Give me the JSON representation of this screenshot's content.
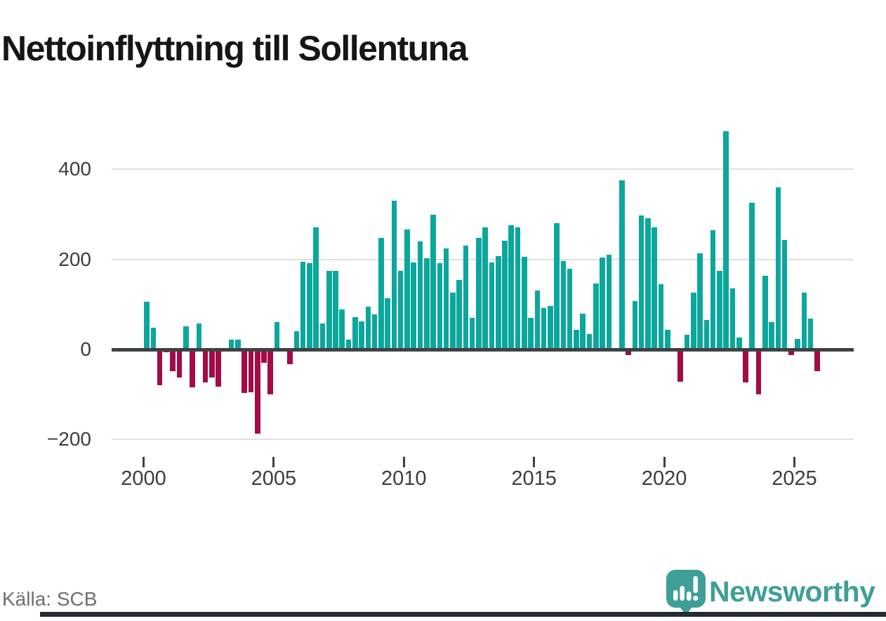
{
  "header": {
    "title": "Nettoinflyttning till Sollentuna"
  },
  "footer": {
    "source": "Källa: SCB",
    "brand": "Newsworthy"
  },
  "colors": {
    "positive": "#0ca79c",
    "negative": "#a30b47",
    "axis": "#3e4144",
    "grid": "#e1e1e1",
    "title_text": "#161616",
    "tick_text": "#3a3d40",
    "source_text": "#6f6f78",
    "brand_teal": "#3f9e98",
    "bottom_bar": "#242b34"
  },
  "chart_data": {
    "type": "bar",
    "title": "Nettoinflyttning till Sollentuna",
    "x": [
      "2000-Q1",
      "2000-Q2",
      "2000-Q3",
      "2000-Q4",
      "2001-Q1",
      "2001-Q2",
      "2001-Q3",
      "2001-Q4",
      "2002-Q1",
      "2002-Q2",
      "2002-Q3",
      "2002-Q4",
      "2003-Q1",
      "2003-Q2",
      "2003-Q3",
      "2003-Q4",
      "2004-Q1",
      "2004-Q2",
      "2004-Q3",
      "2004-Q4",
      "2005-Q1",
      "2005-Q2",
      "2005-Q3",
      "2005-Q4",
      "2006-Q1",
      "2006-Q2",
      "2006-Q3",
      "2006-Q4",
      "2007-Q1",
      "2007-Q2",
      "2007-Q3",
      "2007-Q4",
      "2008-Q1",
      "2008-Q2",
      "2008-Q3",
      "2008-Q4",
      "2009-Q1",
      "2009-Q2",
      "2009-Q3",
      "2009-Q4",
      "2010-Q1",
      "2010-Q2",
      "2010-Q3",
      "2010-Q4",
      "2011-Q1",
      "2011-Q2",
      "2011-Q3",
      "2011-Q4",
      "2012-Q1",
      "2012-Q2",
      "2012-Q3",
      "2012-Q4",
      "2013-Q1",
      "2013-Q2",
      "2013-Q3",
      "2013-Q4",
      "2014-Q1",
      "2014-Q2",
      "2014-Q3",
      "2014-Q4",
      "2015-Q1",
      "2015-Q2",
      "2015-Q3",
      "2015-Q4",
      "2016-Q1",
      "2016-Q2",
      "2016-Q3",
      "2016-Q4",
      "2017-Q1",
      "2017-Q2",
      "2017-Q3",
      "2017-Q4",
      "2018-Q1",
      "2018-Q2",
      "2018-Q3",
      "2018-Q4",
      "2019-Q1",
      "2019-Q2",
      "2019-Q3",
      "2019-Q4",
      "2020-Q1",
      "2020-Q2",
      "2020-Q3",
      "2020-Q4",
      "2021-Q1",
      "2021-Q2",
      "2021-Q3",
      "2021-Q4",
      "2022-Q1",
      "2022-Q2",
      "2022-Q3",
      "2022-Q4",
      "2023-Q1",
      "2023-Q2",
      "2023-Q3",
      "2023-Q4",
      "2024-Q1",
      "2024-Q2",
      "2024-Q3",
      "2024-Q4",
      "2025-Q1",
      "2025-Q2",
      "2025-Q3",
      "2025-Q4"
    ],
    "values": [
      106,
      49,
      -79,
      -7,
      -48,
      -62,
      52,
      -84,
      57,
      -73,
      -63,
      -82,
      0,
      22,
      22,
      -96,
      -95,
      -187,
      -30,
      -100,
      60,
      0,
      -32,
      41,
      195,
      191,
      271,
      57,
      175,
      175,
      89,
      22,
      72,
      63,
      95,
      78,
      248,
      114,
      331,
      175,
      267,
      194,
      240,
      203,
      299,
      192,
      224,
      126,
      154,
      231,
      70,
      248,
      271,
      193,
      207,
      242,
      276,
      271,
      206,
      70,
      131,
      92,
      96,
      281,
      197,
      179,
      44,
      80,
      35,
      147,
      204,
      210,
      0,
      375,
      -12,
      107,
      297,
      292,
      271,
      145,
      44,
      0,
      -72,
      33,
      126,
      214,
      66,
      265,
      175,
      484,
      135,
      27,
      -73,
      325,
      -99,
      164,
      61,
      360,
      243,
      -13,
      23,
      127,
      69,
      -49
    ],
    "xticks": [
      2000,
      2005,
      2010,
      2015,
      2020,
      2025
    ],
    "yticks": [
      400,
      200,
      0,
      -200
    ],
    "ytick_labels": [
      "400",
      "200",
      "0",
      "−200"
    ],
    "ylim": [
      -210,
      495
    ],
    "grid": "horizontal",
    "legend": "none",
    "positive_color": "#0ca79c",
    "negative_color": "#a30b47"
  }
}
